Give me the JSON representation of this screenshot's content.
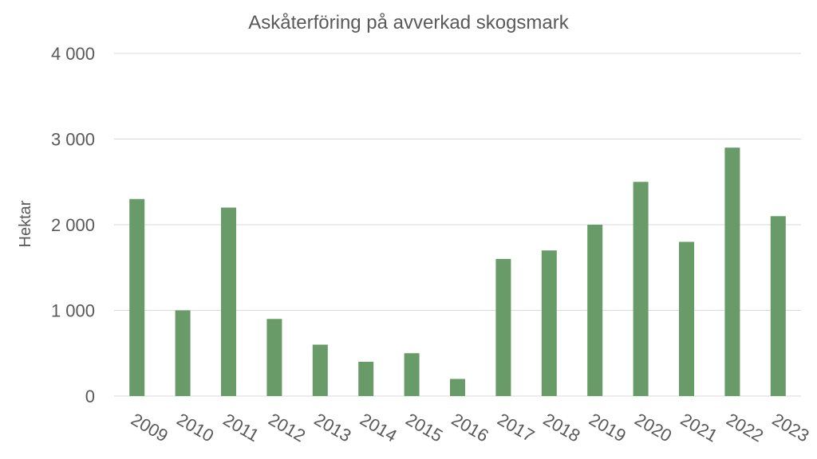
{
  "chart_data": {
    "type": "bar",
    "title": "Askåterföring på avverkad skogsmark",
    "xlabel": "",
    "ylabel": "Hektar",
    "categories": [
      "2009",
      "2010",
      "2011",
      "2012",
      "2013",
      "2014",
      "2015",
      "2016",
      "2017",
      "2018",
      "2019",
      "2020",
      "2021",
      "2022",
      "2023"
    ],
    "values": [
      2300,
      1000,
      2200,
      900,
      600,
      400,
      500,
      200,
      1600,
      1700,
      2000,
      2500,
      1800,
      2900,
      2100
    ],
    "ylim": [
      0,
      4000
    ],
    "yticks": [
      0,
      1000,
      2000,
      3000,
      4000
    ],
    "ytick_labels": [
      "0",
      "1 000",
      "2 000",
      "3 000",
      "4 000"
    ],
    "grid": true,
    "legend": "none",
    "colors": {
      "bar": "#699b69",
      "grid": "#d9d9d9",
      "text": "#595959"
    }
  }
}
